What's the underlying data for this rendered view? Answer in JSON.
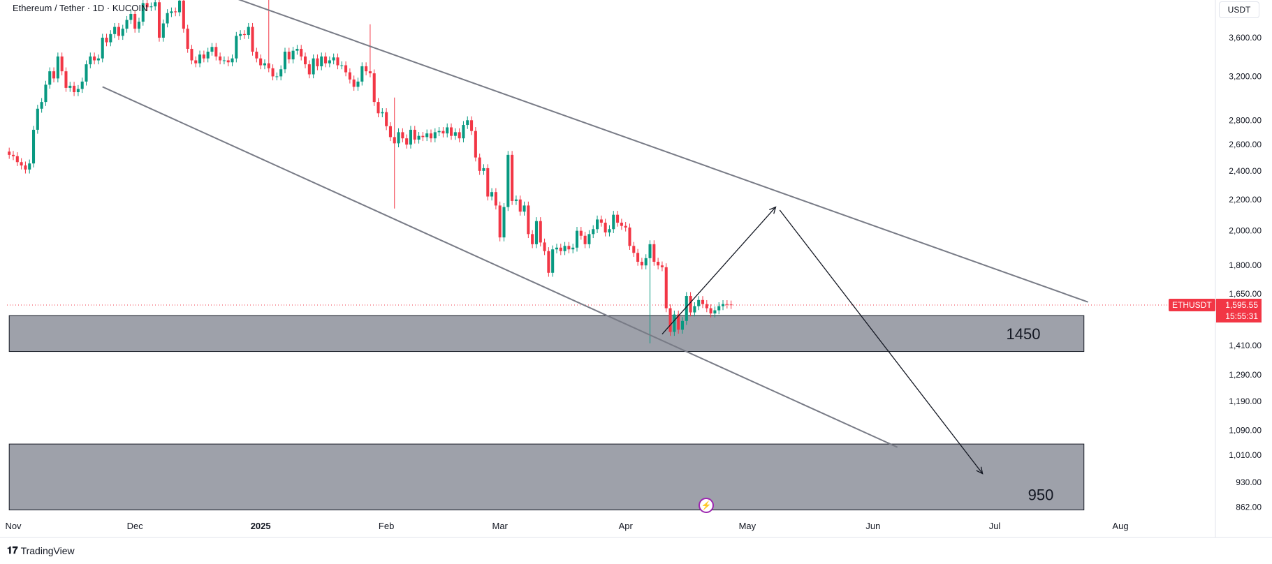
{
  "header": {
    "title": "Ethereum / Tether · 1D · KUCOIN",
    "currency": "USDT"
  },
  "price_label": {
    "symbol": "ETHUSDT",
    "price": "1,595.55",
    "countdown": "15:55:31"
  },
  "footer": {
    "logo_mark": "𝟏𝟕",
    "brand": "TradingView",
    "lightning_icon": "⚡"
  },
  "colors": {
    "up": "#089981",
    "down": "#f23645",
    "zone_fill": "#9ea1aa",
    "trendline": "#787b86",
    "arrow": "#131722"
  },
  "chart_data": {
    "type": "candlestick",
    "symbol": "ETHUSDT",
    "interval": "1D",
    "exchange": "KUCOIN",
    "y_scale": "log",
    "ylim": [
      830,
      4150
    ],
    "x_range": [
      "2024-10-31",
      "2025-08-31"
    ],
    "y_ticks": [
      "3,600.00",
      "3,200.00",
      "2,800.00",
      "2,600.00",
      "2,400.00",
      "2,200.00",
      "2,000.00",
      "1,800.00",
      "1,650.00",
      "1,410.00",
      "1,290.00",
      "1,190.00",
      "1,090.00",
      "1,010.00",
      "930.00",
      "862.00"
    ],
    "y_tick_values": [
      3600,
      3200,
      2800,
      2600,
      2400,
      2200,
      2000,
      1800,
      1650,
      1410,
      1290,
      1190,
      1090,
      1010,
      930,
      862
    ],
    "x_ticks": [
      {
        "label": "Nov",
        "date": "2024-11-01"
      },
      {
        "label": "Dec",
        "date": "2024-12-01"
      },
      {
        "label": "2025",
        "date": "2025-01-01"
      },
      {
        "label": "Feb",
        "date": "2025-02-01"
      },
      {
        "label": "Mar",
        "date": "2025-03-01"
      },
      {
        "label": "Apr",
        "date": "2025-04-01"
      },
      {
        "label": "May",
        "date": "2025-05-01"
      },
      {
        "label": "Jun",
        "date": "2025-06-01"
      },
      {
        "label": "Jul",
        "date": "2025-07-01"
      },
      {
        "label": "Aug",
        "date": "2025-08-01"
      }
    ],
    "last_price": 1595.55,
    "closes_start_date": "2024-10-31",
    "closes": [
      2520,
      2510,
      2465,
      2440,
      2410,
      2455,
      2720,
      2900,
      2960,
      3120,
      3250,
      3180,
      3400,
      3250,
      3090,
      3110,
      3050,
      3080,
      3150,
      3320,
      3400,
      3360,
      3380,
      3600,
      3550,
      3640,
      3720,
      3620,
      3700,
      3800,
      3870,
      3700,
      3780,
      4000,
      3950,
      3960,
      4010,
      3600,
      3760,
      3880,
      3900,
      3890,
      4030,
      3700,
      3480,
      3360,
      3330,
      3420,
      3380,
      3450,
      3500,
      3400,
      3360,
      3360,
      3340,
      3380,
      3620,
      3640,
      3630,
      3720,
      3450,
      3380,
      3310,
      3330,
      3280,
      3200,
      3200,
      3270,
      3450,
      3370,
      3460,
      3480,
      3400,
      3320,
      3220,
      3380,
      3300,
      3400,
      3330,
      3360,
      3390,
      3310,
      3310,
      3240,
      3170,
      3100,
      3150,
      3300,
      3250,
      3230,
      2960,
      2860,
      2870,
      2750,
      2660,
      2610,
      2700,
      2650,
      2600,
      2720,
      2640,
      2670,
      2660,
      2690,
      2650,
      2700,
      2710,
      2690,
      2740,
      2670,
      2700,
      2650,
      2760,
      2800,
      2710,
      2500,
      2400,
      2420,
      2220,
      2250,
      2160,
      1960,
      2150,
      2520,
      2190,
      2200,
      2120,
      2160,
      1980,
      1920,
      2060,
      1930,
      1880,
      1760,
      1890,
      1900,
      1880,
      1910,
      1890,
      1900,
      2000,
      1970,
      1920,
      1980,
      2010,
      2070,
      2050,
      1990,
      2010,
      2100,
      2050,
      2030,
      2020,
      1910,
      1870,
      1820,
      1800,
      1840,
      1920,
      1820,
      1800,
      1790,
      1580,
      1470,
      1550,
      1480,
      1520,
      1640,
      1560,
      1590,
      1620,
      1600,
      1580,
      1555,
      1570,
      1590,
      1600,
      1598,
      1595.55
    ],
    "highs_extra": [
      {
        "date": "2025-01-03",
        "high": 4100
      },
      {
        "date": "2025-01-28",
        "high": 3750
      },
      {
        "date": "2025-02-03",
        "high": 3000,
        "low": 2140
      },
      {
        "date": "2025-04-07",
        "low": 1420
      }
    ],
    "zones": [
      {
        "label": "1450",
        "top": 1545,
        "bottom": 1385,
        "from": "2024-10-31",
        "to": "2025-07-23"
      },
      {
        "label": "950",
        "top": 1045,
        "bottom": 855,
        "from": "2024-10-31",
        "to": "2025-07-23"
      }
    ],
    "trendlines": [
      {
        "name": "upper",
        "from": {
          "date": "2024-12-18",
          "price": 4200
        },
        "to": {
          "date": "2025-07-24",
          "price": 1610
        }
      },
      {
        "name": "lower",
        "from": {
          "date": "2024-11-23",
          "price": 3100
        },
        "to": {
          "date": "2025-06-07",
          "price": 1035
        }
      }
    ],
    "arrows": [
      {
        "name": "up-arrow",
        "from": {
          "date": "2025-04-10",
          "price": 1460
        },
        "to": {
          "date": "2025-05-08",
          "price": 2150
        }
      },
      {
        "name": "down-arrow",
        "from": {
          "date": "2025-05-09",
          "price": 2130
        },
        "to": {
          "date": "2025-06-28",
          "price": 955
        }
      }
    ]
  }
}
